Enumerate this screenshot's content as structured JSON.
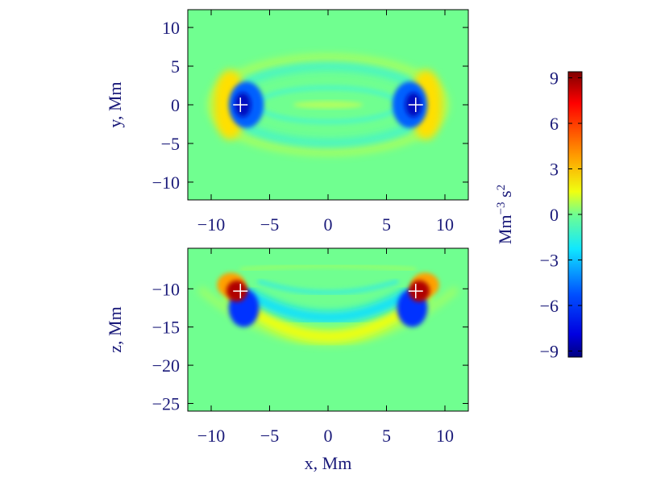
{
  "chart_data": [
    {
      "type": "heatmap",
      "y_label": "y, Mm",
      "xlim": [
        -12,
        12
      ],
      "ylim": [
        -12.3,
        12.3
      ],
      "xticks": [
        {
          "value": -10,
          "label": "−10"
        },
        {
          "value": -5,
          "label": "−5"
        },
        0,
        5,
        10
      ],
      "yticks": [
        10,
        5,
        0,
        {
          "value": -5,
          "label": "−5"
        },
        {
          "value": -10,
          "label": "−10"
        }
      ],
      "markers": {
        "x": [
          -7.5,
          7.5
        ],
        "y": [
          0,
          0
        ],
        "color": "#ffffff"
      }
    },
    {
      "type": "heatmap",
      "x_label": "x, Mm",
      "y_label": "z, Mm",
      "xlim": [
        -12,
        12
      ],
      "ylim": [
        -26,
        -4.7
      ],
      "xticks": [
        {
          "value": -10,
          "label": "−10"
        },
        {
          "value": -5,
          "label": "−5"
        },
        0,
        5,
        10
      ],
      "yticks": [
        {
          "value": -10,
          "label": "−10"
        },
        {
          "value": -15,
          "label": "−15"
        },
        {
          "value": -20,
          "label": "−20"
        },
        {
          "value": -25,
          "label": "−25"
        }
      ],
      "markers": {
        "x": [
          -7.5,
          7.5
        ],
        "y": [
          -10.3,
          -10.3
        ],
        "color": "#ffffff"
      }
    },
    {
      "type": "colorbar",
      "label": {
        "base": "Mm",
        "exp": "−3",
        "base2": " s",
        "exp2": "2"
      },
      "ylim": [
        -9.4,
        9.4
      ],
      "yticks": [
        9,
        6,
        3,
        0,
        {
          "value": -3,
          "label": "−3"
        },
        {
          "value": -6,
          "label": "−6"
        },
        {
          "value": -9,
          "label": "−9"
        }
      ]
    }
  ]
}
